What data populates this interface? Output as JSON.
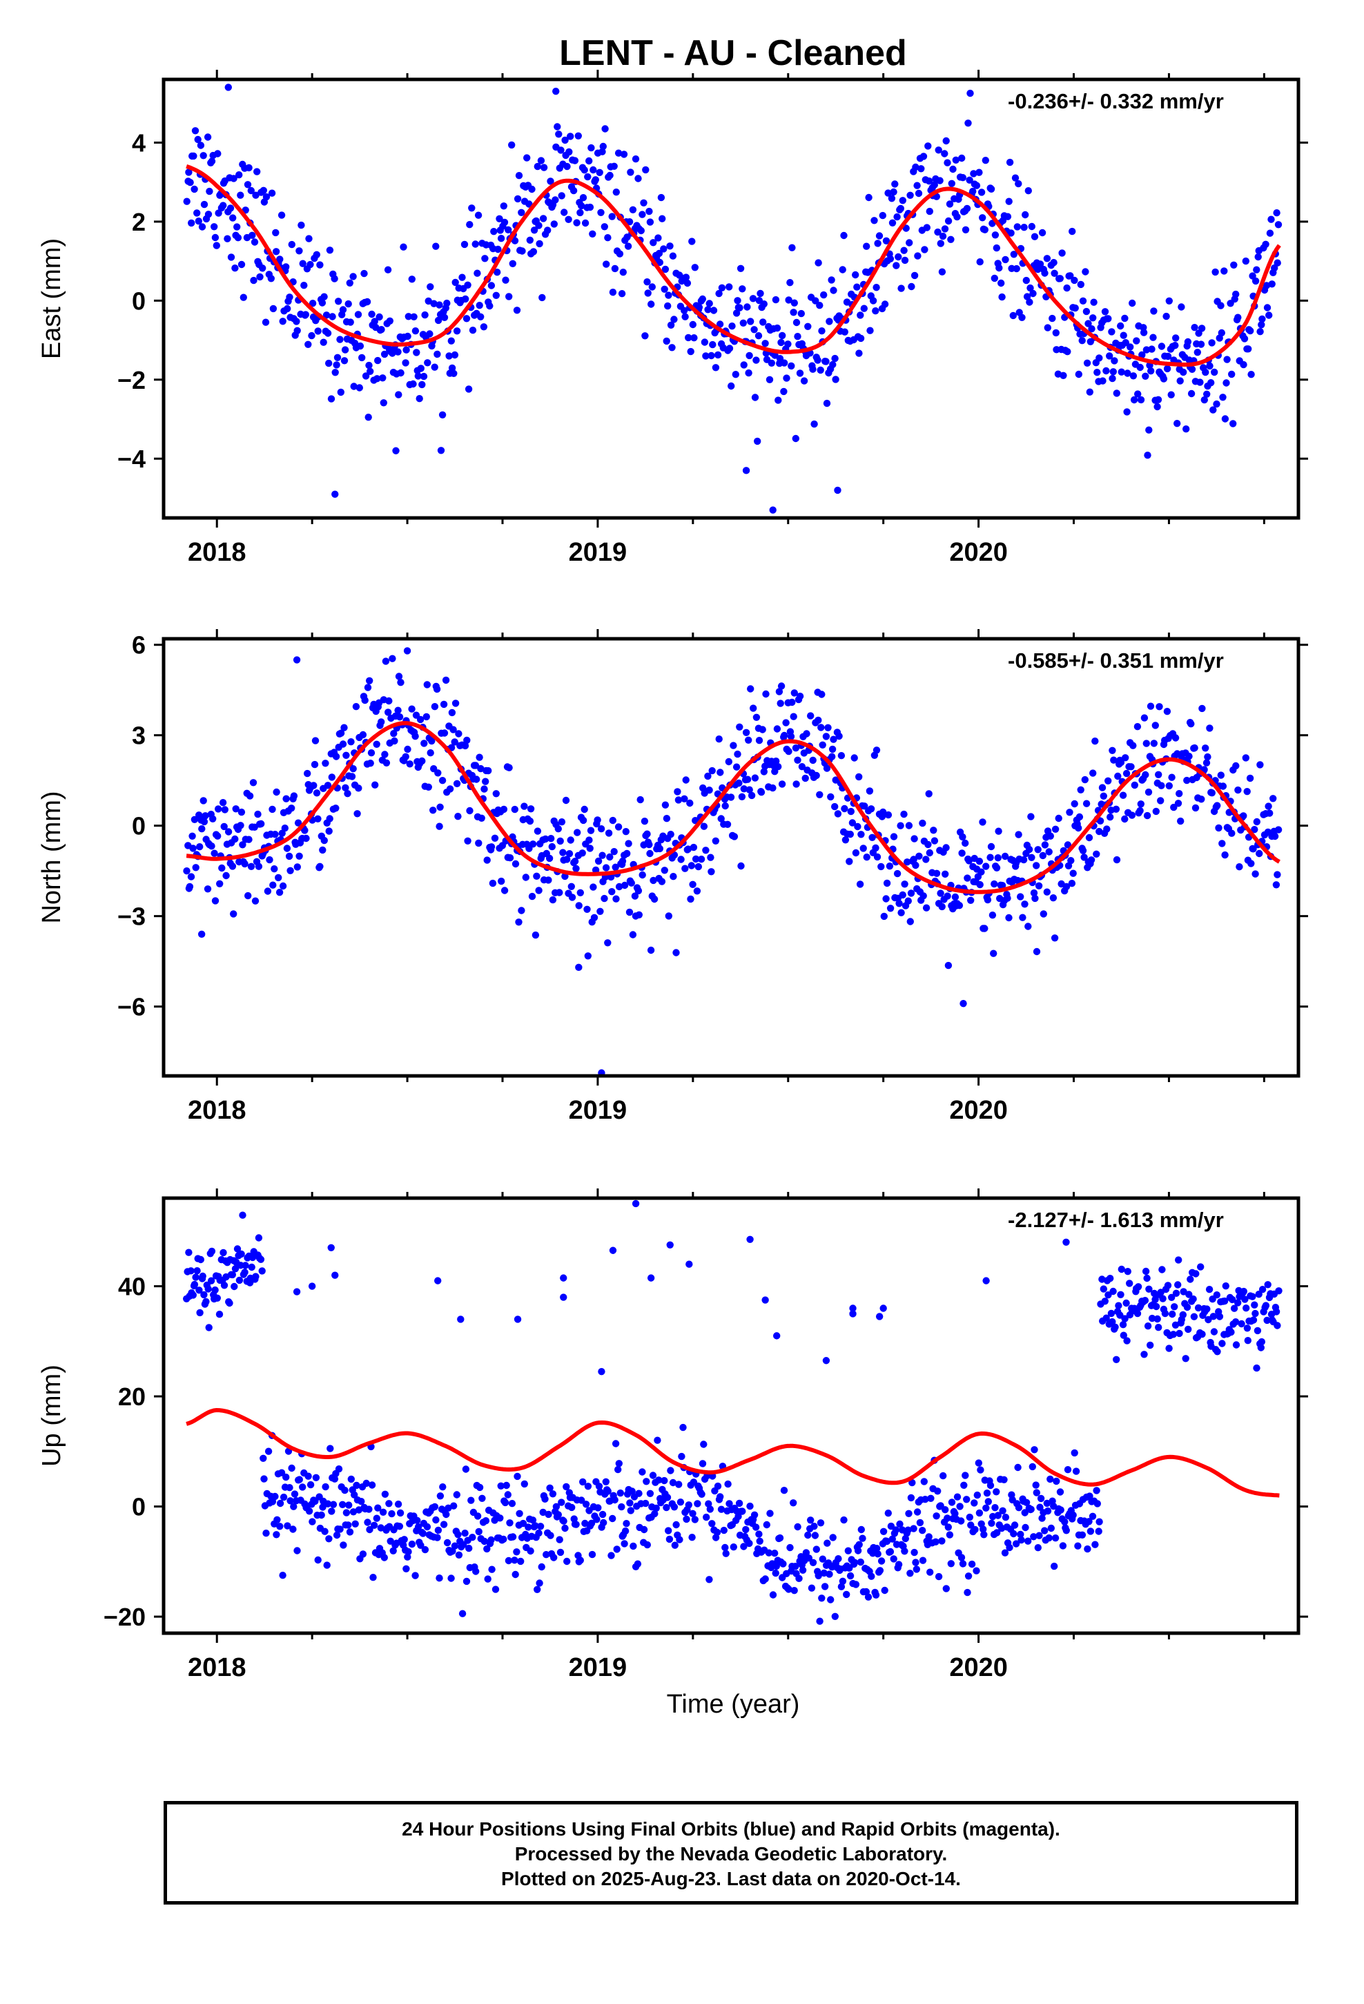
{
  "title": "LENT  - AU - Cleaned",
  "xlabel": "Time (year)",
  "footer": {
    "line1": "24 Hour Positions Using Final Orbits (blue) and Rapid Orbits (magenta).",
    "line2": "Processed by the Nevada Geodetic Laboratory.",
    "line3": "Plotted on 2025-Aug-23. Last data on 2020-Oct-14."
  },
  "colors": {
    "points": "#0000ff",
    "fit": "#ff0000",
    "axis": "#000000"
  },
  "chart_data": [
    {
      "type": "scatter",
      "panel": "east",
      "ylabel": "East (mm)",
      "rate_text": "-0.236+/- 0.332 mm/yr",
      "xlim": [
        2017.86,
        2020.84
      ],
      "ylim": [
        -5.5,
        5.6
      ],
      "yticks": [
        -4,
        -2,
        0,
        2,
        4
      ],
      "xticks": [
        2018,
        2019,
        2020
      ],
      "series": [
        {
          "kind": "fit",
          "x": [
            2017.92,
            2018.0,
            2018.1,
            2018.2,
            2018.3,
            2018.4,
            2018.5,
            2018.6,
            2018.7,
            2018.8,
            2018.9,
            2019.0,
            2019.1,
            2019.2,
            2019.3,
            2019.4,
            2019.5,
            2019.6,
            2019.7,
            2019.8,
            2019.9,
            2020.0,
            2020.1,
            2020.2,
            2020.3,
            2020.4,
            2020.5,
            2020.6,
            2020.7,
            2020.79
          ],
          "y": [
            3.4,
            2.9,
            1.8,
            0.3,
            -0.6,
            -1.0,
            -1.1,
            -0.8,
            0.4,
            2.0,
            3.0,
            2.7,
            1.6,
            0.3,
            -0.6,
            -1.1,
            -1.3,
            -1.0,
            0.3,
            1.9,
            2.8,
            2.5,
            1.3,
            0.0,
            -0.9,
            -1.4,
            -1.6,
            -1.5,
            -0.6,
            1.4
          ]
        },
        {
          "kind": "daily",
          "x_start": 2017.92,
          "x_end": 2020.79,
          "n": 1000,
          "fit_series": 0,
          "scatter_mm": 0.85,
          "outliers": [
            [
              2018.31,
              -4.9
            ],
            [
              2018.47,
              -3.8
            ],
            [
              2019.39,
              -4.3
            ],
            [
              2019.46,
              -5.3
            ],
            [
              2019.63,
              -4.8
            ],
            [
              2018.03,
              5.4
            ],
            [
              2018.89,
              5.3
            ]
          ]
        }
      ]
    },
    {
      "type": "scatter",
      "panel": "north",
      "ylabel": "North (mm)",
      "rate_text": "-0.585+/- 0.351 mm/yr",
      "xlim": [
        2017.86,
        2020.84
      ],
      "ylim": [
        -8.3,
        6.2
      ],
      "yticks": [
        -6,
        -3,
        0,
        3,
        6
      ],
      "xticks": [
        2018,
        2019,
        2020
      ],
      "series": [
        {
          "kind": "fit",
          "x": [
            2017.92,
            2018.0,
            2018.1,
            2018.2,
            2018.3,
            2018.4,
            2018.5,
            2018.6,
            2018.7,
            2018.8,
            2018.9,
            2019.0,
            2019.1,
            2019.2,
            2019.3,
            2019.4,
            2019.5,
            2019.6,
            2019.7,
            2019.8,
            2019.9,
            2020.0,
            2020.1,
            2020.2,
            2020.3,
            2020.4,
            2020.5,
            2020.6,
            2020.7,
            2020.79
          ],
          "y": [
            -1.0,
            -1.1,
            -0.9,
            -0.3,
            1.2,
            2.8,
            3.4,
            2.6,
            0.7,
            -0.9,
            -1.5,
            -1.6,
            -1.4,
            -0.8,
            0.6,
            2.1,
            2.8,
            2.2,
            0.3,
            -1.3,
            -2.0,
            -2.2,
            -2.0,
            -1.3,
            0.1,
            1.6,
            2.2,
            1.6,
            0.0,
            -1.2
          ]
        },
        {
          "kind": "daily",
          "x_start": 2017.92,
          "x_end": 2020.79,
          "n": 1000,
          "fit_series": 0,
          "scatter_mm": 1.05,
          "outliers": [
            [
              2019.01,
              -8.2
            ],
            [
              2019.96,
              -5.9
            ],
            [
              2018.95,
              -4.7
            ],
            [
              2017.96,
              -3.6
            ],
            [
              2018.5,
              5.8
            ],
            [
              2018.21,
              5.5
            ]
          ]
        }
      ]
    },
    {
      "type": "scatter",
      "panel": "up",
      "ylabel": "Up (mm)",
      "rate_text": "-2.127+/- 1.613 mm/yr",
      "xlim": [
        2017.86,
        2020.84
      ],
      "ylim": [
        -23,
        56
      ],
      "yticks": [
        -20,
        0,
        20,
        40
      ],
      "xticks": [
        2018,
        2019,
        2020
      ],
      "series": [
        {
          "kind": "fit",
          "x": [
            2017.92,
            2018.0,
            2018.1,
            2018.2,
            2018.3,
            2018.4,
            2018.5,
            2018.6,
            2018.7,
            2018.8,
            2018.9,
            2019.0,
            2019.1,
            2019.2,
            2019.3,
            2019.4,
            2019.5,
            2019.6,
            2019.7,
            2019.8,
            2019.9,
            2020.0,
            2020.1,
            2020.2,
            2020.3,
            2020.4,
            2020.5,
            2020.6,
            2020.7,
            2020.79
          ],
          "y": [
            15.0,
            17.5,
            15.0,
            10.5,
            9.0,
            11.5,
            13.3,
            11.0,
            7.5,
            7.0,
            11.0,
            15.2,
            13.0,
            8.0,
            6.2,
            8.5,
            11.0,
            9.3,
            5.5,
            4.5,
            9.0,
            13.2,
            11.0,
            6.0,
            4.0,
            6.5,
            9.0,
            7.0,
            3.0,
            2.0
          ]
        },
        {
          "kind": "daily",
          "x_start": 2018.12,
          "x_end": 2020.32,
          "n": 760,
          "trend": [
            [
              2018.12,
              2.0
            ],
            [
              2018.5,
              -5.0
            ],
            [
              2018.8,
              -4.0
            ],
            [
              2019.1,
              1.0
            ],
            [
              2019.3,
              2.0
            ],
            [
              2019.5,
              -10.0
            ],
            [
              2019.7,
              -11.0
            ],
            [
              2019.85,
              -4.0
            ],
            [
              2020.1,
              0.0
            ],
            [
              2020.32,
              -3.0
            ]
          ],
          "scatter_mm": 4.5
        },
        {
          "kind": "daily",
          "x_start": 2017.92,
          "x_end": 2018.12,
          "n": 75,
          "trend": [
            [
              2017.92,
              40.0
            ],
            [
              2018.12,
              43.0
            ]
          ],
          "scatter_mm": 3.0
        },
        {
          "kind": "daily",
          "x_start": 2020.32,
          "x_end": 2020.79,
          "n": 170,
          "trend": [
            [
              2020.32,
              37.0
            ],
            [
              2020.79,
              34.0
            ]
          ],
          "scatter_mm": 4.0
        },
        {
          "kind": "points",
          "points": [
            [
              2018.25,
              40.0
            ],
            [
              2018.21,
              39.0
            ],
            [
              2018.3,
              47.0
            ],
            [
              2018.31,
              42.0
            ],
            [
              2018.58,
              41.0
            ],
            [
              2018.64,
              34.0
            ],
            [
              2018.79,
              34.0
            ],
            [
              2018.91,
              38.0
            ],
            [
              2018.91,
              41.5
            ],
            [
              2019.01,
              24.5
            ],
            [
              2019.04,
              46.5
            ],
            [
              2019.1,
              55.0
            ],
            [
              2019.14,
              41.5
            ],
            [
              2019.19,
              47.5
            ],
            [
              2019.24,
              44.0
            ],
            [
              2019.4,
              48.5
            ],
            [
              2019.44,
              37.5
            ],
            [
              2019.47,
              31.0
            ],
            [
              2019.6,
              26.5
            ],
            [
              2019.67,
              36.0
            ],
            [
              2019.67,
              35.0
            ],
            [
              2019.74,
              34.5
            ],
            [
              2019.75,
              36.0
            ],
            [
              2020.02,
              41.0
            ],
            [
              2020.23,
              48.0
            ]
          ]
        }
      ]
    }
  ]
}
